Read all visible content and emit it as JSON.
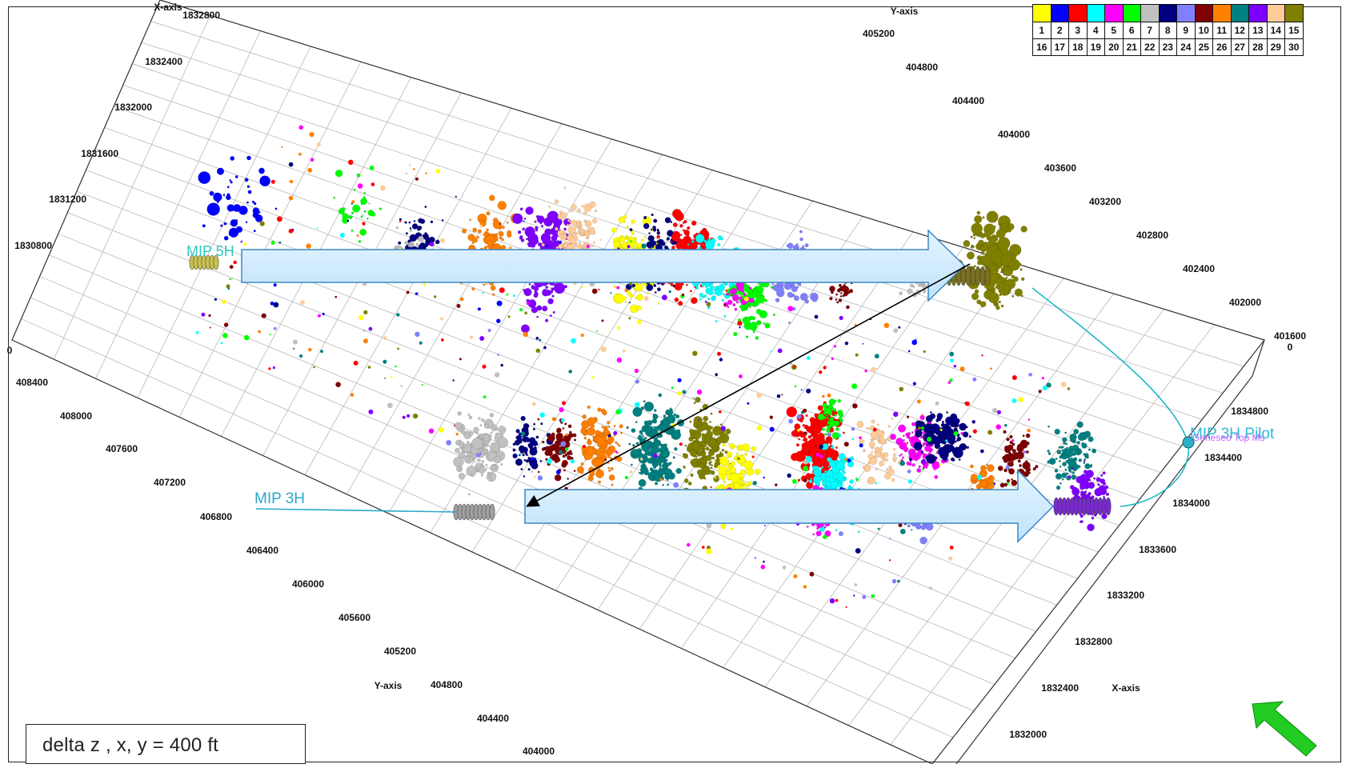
{
  "viewer": {
    "scale_note": "delta z , x, y =  400 ft",
    "background_color": "#ffffff"
  },
  "legend": {
    "stage_colors": [
      "#ffff00",
      "#0000ff",
      "#ff0000",
      "#00ffff",
      "#ff00ff",
      "#00ff00",
      "#c0c0c0",
      "#000080",
      "#8080ff",
      "#800000",
      "#ff8000",
      "#008080",
      "#8000ff",
      "#ffcc99",
      "#808000"
    ],
    "row1": [
      "1",
      "2",
      "3",
      "4",
      "5",
      "6",
      "7",
      "8",
      "9",
      "10",
      "11",
      "12",
      "13",
      "14",
      "15"
    ],
    "row2": [
      "16",
      "17",
      "18",
      "19",
      "20",
      "21",
      "22",
      "23",
      "24",
      "25",
      "26",
      "27",
      "28",
      "29",
      "30"
    ]
  },
  "axes": {
    "x_axis_label": "X-axis",
    "y_axis_label": "Y-axis",
    "x_ticks_left": [
      "1832800",
      "1832400",
      "1832000",
      "1831600",
      "1831200",
      "1830800"
    ],
    "y_ticks_top": [
      "405200",
      "404800",
      "404400",
      "404000",
      "403600",
      "403200",
      "402800",
      "402400",
      "402000",
      "401600"
    ],
    "y_ticks_left": [
      "408400",
      "408000",
      "407600",
      "407200",
      "406800",
      "406400",
      "406000",
      "405600",
      "405200",
      "404800",
      "404400",
      "404000"
    ],
    "x_ticks_right": [
      "1834800",
      "1834400",
      "1834000",
      "1833600",
      "1833200",
      "1832800",
      "1832400",
      "1832000"
    ],
    "zero_label": "0"
  },
  "wells": {
    "upper_label": "MIP 5H",
    "lower_label": "MIP 3H",
    "pilot_label": "MIP 3H Pilot",
    "pilot_overlay_label": "Geneseo Top Ms"
  },
  "annotations": {
    "arrow_color": "#bfe3fb",
    "arrow_edge": "#3d86c6",
    "north_arrow_color": "#22cc22",
    "connector_color": "#000000"
  },
  "chart_data": {
    "type": "scatter",
    "title": "",
    "xlabel": "X-axis",
    "ylabel": "Y-axis",
    "stage_count": 30,
    "clusters": [
      {
        "well": "MIP 5H",
        "stage": 2,
        "color": "#0000ff"
      },
      {
        "well": "MIP 5H",
        "stage": 19,
        "color": "#00ff00"
      },
      {
        "well": "MIP 5H",
        "stage": 8,
        "color": "#000080"
      },
      {
        "well": "MIP 5H",
        "stage": 11,
        "color": "#ff8000"
      },
      {
        "well": "MIP 5H",
        "stage": 13,
        "color": "#8000ff"
      },
      {
        "well": "MIP 5H",
        "stage": 14,
        "color": "#ffcc99"
      },
      {
        "well": "MIP 5H",
        "stage": 1,
        "color": "#ffff00"
      },
      {
        "well": "MIP 5H",
        "stage": 3,
        "color": "#ff0000"
      },
      {
        "well": "MIP 5H",
        "stage": 4,
        "color": "#00ffff"
      },
      {
        "well": "MIP 5H",
        "stage": 6,
        "color": "#00ff00"
      },
      {
        "well": "MIP 5H",
        "stage": 9,
        "color": "#8080ff"
      },
      {
        "well": "MIP 5H",
        "stage": 15,
        "color": "#808000"
      },
      {
        "well": "MIP 3H",
        "stage": 7,
        "color": "#c0c0c0"
      },
      {
        "well": "MIP 3H",
        "stage": 10,
        "color": "#800000"
      },
      {
        "well": "MIP 3H",
        "stage": 12,
        "color": "#008080"
      },
      {
        "well": "MIP 3H",
        "stage": 15,
        "color": "#808000"
      },
      {
        "well": "MIP 3H",
        "stage": 3,
        "color": "#ff0000"
      },
      {
        "well": "MIP 3H",
        "stage": 5,
        "color": "#ff00ff"
      },
      {
        "well": "MIP 3H",
        "stage": 8,
        "color": "#000080"
      },
      {
        "well": "MIP 3H",
        "stage": 11,
        "color": "#ff8000"
      },
      {
        "well": "MIP 3H",
        "stage": 13,
        "color": "#8000ff"
      }
    ]
  }
}
